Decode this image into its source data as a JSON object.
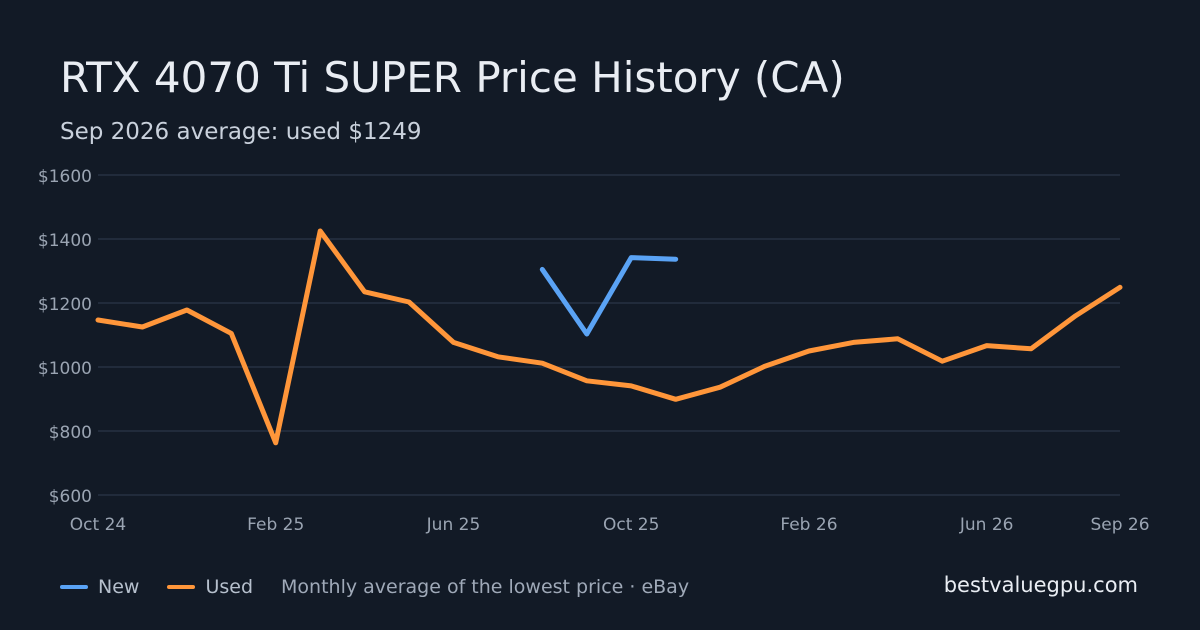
{
  "header": {
    "title": "RTX 4070 Ti SUPER Price History (CA)",
    "subtitle": "Sep 2026 average: used $1249"
  },
  "legend": {
    "note": "Monthly average of the lowest price · eBay"
  },
  "brand": "bestvaluegpu.com",
  "colors": {
    "background": "#121a26",
    "grid": "#263142",
    "axis_text": "#9aa4b2",
    "new": "#5aa3f5",
    "used": "#ff963a"
  },
  "chart_data": {
    "type": "line",
    "title": "RTX 4070 Ti SUPER Price History (CA)",
    "subtitle": "Sep 2026 average: used $1249",
    "xlabel": "",
    "ylabel": "",
    "categories": [
      "Oct 24",
      "Nov 24",
      "Dec 24",
      "Jan 25",
      "Feb 25",
      "Mar 25",
      "Apr 25",
      "May 25",
      "Jun 25",
      "Jul 25",
      "Aug 25",
      "Sep 25",
      "Oct 25",
      "Nov 25",
      "Dec 25",
      "Jan 26",
      "Feb 26",
      "Mar 26",
      "Apr 26",
      "May 26",
      "Jun 26",
      "Jul 26",
      "Aug 26",
      "Sep 26"
    ],
    "x_tick_labels": [
      {
        "index": 0,
        "label": "Oct 24"
      },
      {
        "index": 4,
        "label": "Feb 25"
      },
      {
        "index": 8,
        "label": "Jun 25"
      },
      {
        "index": 12,
        "label": "Oct 25"
      },
      {
        "index": 16,
        "label": "Feb 26"
      },
      {
        "index": 20,
        "label": "Jun 26"
      },
      {
        "index": 23,
        "label": "Sep 26"
      }
    ],
    "y_ticks": [
      600,
      800,
      1000,
      1200,
      1400,
      1600
    ],
    "y_tick_labels": [
      "$600",
      "$800",
      "$1000",
      "$1200",
      "$1400",
      "$1600"
    ],
    "ylim": [
      600,
      1600
    ],
    "grid": true,
    "legend_position": "bottom-left",
    "series": [
      {
        "name": "New",
        "color": "#5aa3f5",
        "values": [
          null,
          null,
          null,
          null,
          null,
          null,
          null,
          null,
          null,
          null,
          1305,
          1103,
          1342,
          1337,
          null,
          null,
          null,
          null,
          null,
          null,
          null,
          null,
          null,
          null
        ]
      },
      {
        "name": "Used",
        "color": "#ff963a",
        "values": [
          1147,
          1125,
          1178,
          1105,
          763,
          1425,
          1235,
          1203,
          1077,
          1032,
          1012,
          957,
          941,
          899,
          937,
          1002,
          1050,
          1077,
          1088,
          1018,
          1067,
          1057,
          1160,
          1249
        ]
      }
    ]
  }
}
